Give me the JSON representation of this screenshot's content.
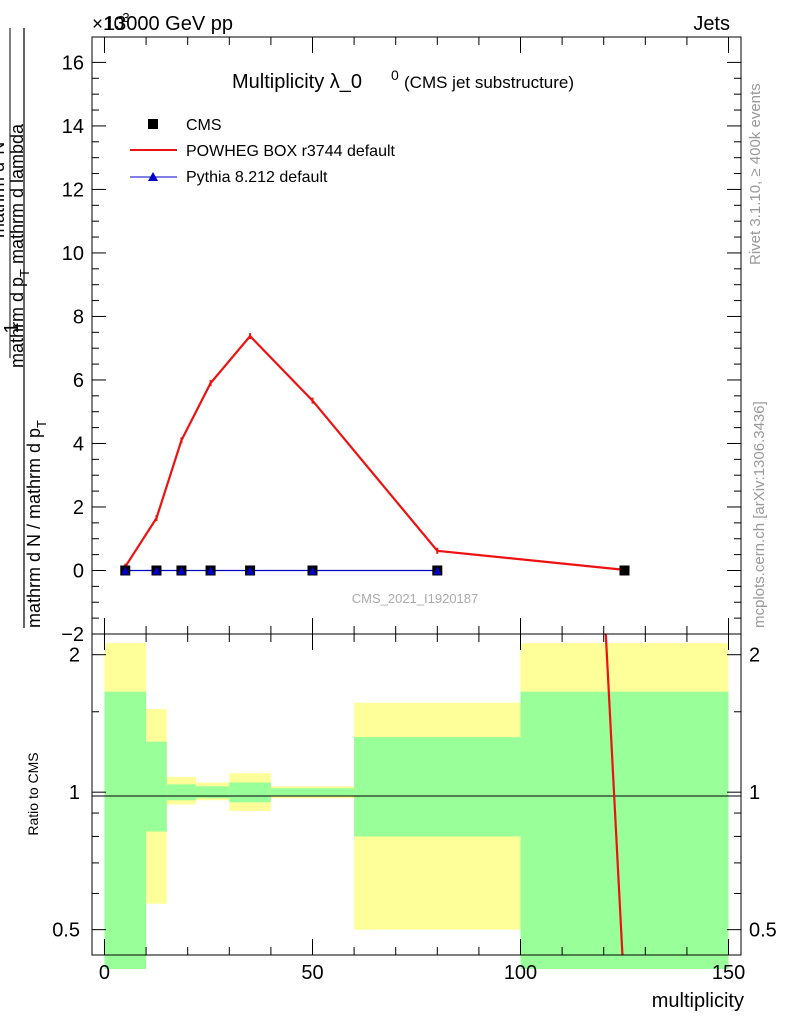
{
  "header": {
    "left": "13000 GeV pp",
    "right": "Jets",
    "exponent": "×10",
    "exponent_sup": "-3"
  },
  "side_labels": {
    "rivet": "Rivet 3.1.10, ≥ 400k events",
    "mcplots": "mcplots.cern.ch [arXiv:1306.3436]"
  },
  "colors": {
    "cms": "#000000",
    "powheg": "#ee1111",
    "pythia": "#0000cc",
    "band_inner": "#99ff99",
    "band_outer": "#ffff99"
  },
  "chart_data": [
    {
      "type": "line",
      "title": "Multiplicity λ_0",
      "title_sup": "0",
      "subtitle": "(CMS jet substructure)",
      "ylabel_numerator": "1",
      "ylabel_denominator": "mathrm d N / mathrm d p",
      "ylabel_denominator_sub": "T",
      "ylabel_deriv_top": "mathrm d",
      "ylabel_deriv_top_sup": "2",
      "ylabel_deriv_top_tail": "N",
      "ylabel_deriv_bottom": "mathrm d p",
      "ylabel_deriv_bottom_sub": "T",
      "ylabel_deriv_bottom_tail": " mathrm d lambda",
      "analysis_label": "CMS_2021_I1920187",
      "xlim": [
        -3,
        153
      ],
      "ylim": [
        -2.0,
        16.8
      ],
      "yticks": [
        -2,
        0,
        2,
        4,
        6,
        8,
        10,
        12,
        14,
        16
      ],
      "ytick_labels": [
        "−2",
        "0",
        "2",
        "4",
        "6",
        "8",
        "10",
        "12",
        "14",
        "16"
      ],
      "y_scale_note": "×10^-3",
      "legend": [
        {
          "label": "CMS",
          "marker": "square"
        },
        {
          "label": "POWHEG BOX r3744 default",
          "marker": "line"
        },
        {
          "label": "Pythia 8.212 default",
          "marker": "triangle"
        }
      ],
      "series": [
        {
          "name": "CMS",
          "x": [
            5,
            12.5,
            18.5,
            25.5,
            35,
            50,
            80,
            125
          ],
          "y": [
            0,
            0,
            0,
            0,
            0,
            0,
            0,
            0
          ]
        },
        {
          "name": "POWHEG BOX r3744 default",
          "x": [
            5,
            12.5,
            18.5,
            25.5,
            35,
            50,
            80,
            125
          ],
          "y": [
            0.12,
            1.65,
            4.1,
            5.9,
            7.38,
            5.35,
            0.62,
            0.02
          ]
        },
        {
          "name": "Pythia 8.212 default",
          "x": [
            5,
            12.5,
            18.5,
            25.5,
            35,
            50,
            80
          ],
          "y": [
            0,
            0,
            0,
            0,
            0,
            0,
            0
          ]
        }
      ]
    },
    {
      "type": "line",
      "title": "Ratio to CMS",
      "ylabel": "Ratio to CMS",
      "xlabel": "multiplicity",
      "xlim": [
        -3,
        153
      ],
      "ylim": [
        0.44,
        2.22
      ],
      "y_scale": "log",
      "yticks": [
        0.5,
        1,
        2
      ],
      "ytick_labels": [
        "0.5",
        "1",
        "2"
      ],
      "xticks": [
        0,
        50,
        100,
        150
      ],
      "xtick_labels": [
        "0",
        "50",
        "100",
        "150"
      ],
      "bins": [
        {
          "lo": 0,
          "hi": 10,
          "inner": [
            0.41,
            1.66
          ],
          "outer": [
            0.41,
            2.12
          ]
        },
        {
          "lo": 10,
          "hi": 15,
          "inner": [
            0.82,
            1.29
          ],
          "outer": [
            0.57,
            1.52
          ]
        },
        {
          "lo": 15,
          "hi": 22,
          "inner": [
            0.96,
            1.04
          ],
          "outer": [
            0.94,
            1.08
          ]
        },
        {
          "lo": 22,
          "hi": 30,
          "inner": [
            0.97,
            1.03
          ],
          "outer": [
            0.96,
            1.05
          ]
        },
        {
          "lo": 30,
          "hi": 40,
          "inner": [
            0.95,
            1.05
          ],
          "outer": [
            0.91,
            1.1
          ]
        },
        {
          "lo": 40,
          "hi": 60,
          "inner": [
            0.98,
            1.02
          ],
          "outer": [
            0.97,
            1.03
          ]
        },
        {
          "lo": 60,
          "hi": 100,
          "inner": [
            0.8,
            1.32
          ],
          "outer": [
            0.5,
            1.57
          ]
        },
        {
          "lo": 100,
          "hi": 150,
          "inner": [
            0.41,
            1.66
          ],
          "outer": [
            0.41,
            2.12
          ]
        }
      ],
      "series": [
        {
          "name": "POWHEG BOX r3744 default",
          "x": [
            120.5,
            124.5
          ],
          "y": [
            2.22,
            0.44
          ]
        }
      ]
    }
  ]
}
